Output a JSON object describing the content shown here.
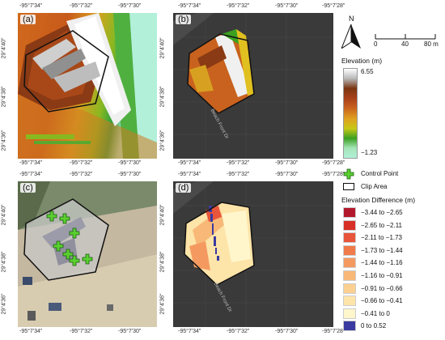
{
  "panels": {
    "a": {
      "label": "(a)"
    },
    "b": {
      "label": "(b)"
    },
    "c": {
      "label": "(c)"
    },
    "d": {
      "label": "(d)"
    }
  },
  "axes": {
    "top_left": [
      "-95°7'34\"",
      "-95°7'32\"",
      "-95°7'30\""
    ],
    "top_right": [
      "-95°7'34\"",
      "-95°7'32\"",
      "-95°7'30\"",
      "-95°7'28\""
    ],
    "bottom_left": [
      "-95°7'34\"",
      "-95°7'32\"",
      "-95°7'30\""
    ],
    "bottom_right": [
      "-95°7'34\"",
      "-95°7'32\"",
      "-95°7'30\"",
      "-95°7'28\""
    ],
    "lat": [
      "29°4'40\"",
      "29°4'38\"",
      "29°4'36\""
    ]
  },
  "road_label": "Beach Front Dr",
  "north": {
    "letter": "N"
  },
  "scale": {
    "ticks": [
      "0",
      "40",
      "80 m"
    ]
  },
  "elevation_legend": {
    "title": "Elevation (m)",
    "max": "6.55",
    "min": "−1.23",
    "colors": [
      "#ffffff",
      "#b8b8b8",
      "#7a3510",
      "#a8401a",
      "#c8621e",
      "#e0a020",
      "#c8c818",
      "#3aa020",
      "#a4e4b8",
      "#b0f0d8"
    ]
  },
  "control_legend": {
    "control_point": "Control Point",
    "clip_area": "Clip Area"
  },
  "diff_legend": {
    "title": "Elevation Difference (m)",
    "items": [
      {
        "label": "−3.44 to −2.65",
        "color": "#b2182b"
      },
      {
        "label": "−2.65 to −2.11",
        "color": "#d73027"
      },
      {
        "label": "−2.11 to −1.73",
        "color": "#e8553a"
      },
      {
        "label": "−1.73 to −1.44",
        "color": "#f07a4a"
      },
      {
        "label": "−1.44 to −1.16",
        "color": "#f49a60"
      },
      {
        "label": "−1.16 to −0.91",
        "color": "#f8b878"
      },
      {
        "label": "−0.91 to −0.66",
        "color": "#fbd090"
      },
      {
        "label": "−0.66 to −0.41",
        "color": "#fde4a8"
      },
      {
        "label": "−0.41 to 0",
        "color": "#fff6cc"
      },
      {
        "label": "0 to 0.52",
        "color": "#3a3aa0"
      }
    ]
  }
}
